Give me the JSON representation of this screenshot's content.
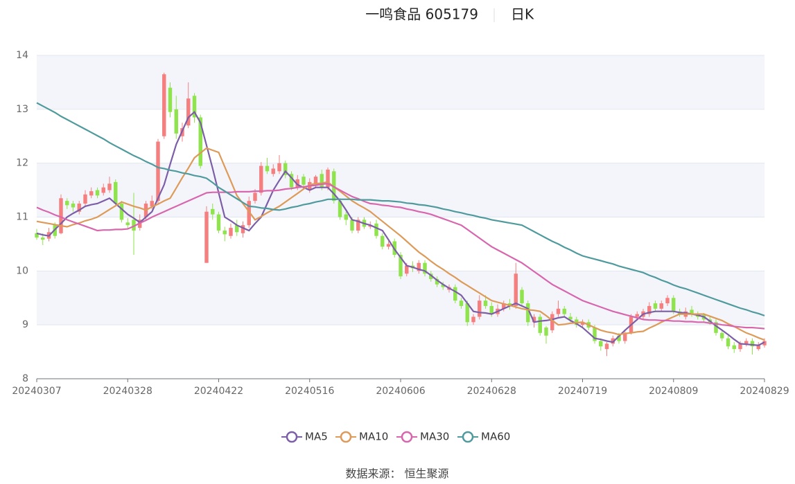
{
  "chart_data": {
    "type": "candlestick",
    "title": "一鸣食品 605179",
    "period": "日K",
    "source": "数据来源： 恒生聚源",
    "categories": [
      "20240307",
      null,
      null,
      null,
      null,
      null,
      null,
      null,
      null,
      null,
      null,
      null,
      null,
      null,
      null,
      "20240328",
      null,
      null,
      null,
      null,
      null,
      null,
      null,
      null,
      null,
      null,
      null,
      null,
      null,
      null,
      "20240422",
      null,
      null,
      null,
      null,
      null,
      null,
      null,
      null,
      null,
      null,
      null,
      null,
      null,
      null,
      "20240516",
      null,
      null,
      null,
      null,
      null,
      null,
      null,
      null,
      null,
      null,
      null,
      null,
      null,
      null,
      "20240606",
      null,
      null,
      null,
      null,
      null,
      null,
      null,
      null,
      null,
      null,
      null,
      null,
      null,
      null,
      "20240628",
      null,
      null,
      null,
      null,
      null,
      null,
      null,
      null,
      null,
      null,
      null,
      null,
      null,
      null,
      "20240719",
      null,
      null,
      null,
      null,
      null,
      null,
      null,
      null,
      null,
      null,
      null,
      null,
      null,
      null,
      "20240809",
      null,
      null,
      null,
      null,
      null,
      null,
      null,
      null,
      null,
      null,
      null,
      null,
      null,
      null,
      "20240829"
    ],
    "open": [
      10.7,
      10.62,
      10.6,
      10.85,
      10.7,
      11.3,
      11.25,
      11.1,
      11.25,
      11.4,
      11.5,
      11.45,
      11.5,
      11.65,
      11.25,
      10.9,
      10.95,
      10.8,
      11.0,
      11.2,
      11.3,
      12.5,
      13.4,
      13.0,
      12.5,
      12.7,
      13.25,
      12.85,
      10.15,
      11.15,
      11.05,
      10.75,
      10.65,
      10.85,
      10.7,
      10.85,
      11.3,
      11.45,
      11.95,
      11.8,
      11.85,
      12.0,
      11.8,
      11.55,
      11.75,
      11.5,
      11.6,
      11.8,
      11.55,
      11.85,
      11.3,
      11.05,
      10.95,
      10.75,
      10.95,
      10.82,
      10.88,
      10.65,
      10.45,
      10.55,
      10.3,
      9.95,
      10.1,
      10.0,
      10.15,
      9.95,
      9.85,
      9.75,
      9.65,
      9.7,
      9.45,
      9.4,
      9.05,
      9.15,
      9.45,
      9.35,
      9.2,
      9.3,
      9.4,
      9.35,
      9.65,
      9.4,
      9.05,
      9.15,
      8.95,
      8.9,
      9.2,
      9.3,
      9.15,
      9.1,
      9.0,
      9.05,
      8.95,
      8.7,
      8.55,
      8.65,
      8.8,
      8.7,
      8.85,
      9.15,
      9.15,
      9.2,
      9.4,
      9.3,
      9.4,
      9.5,
      9.25,
      9.15,
      9.28,
      9.2,
      9.18,
      9.1,
      9.05,
      8.85,
      8.75,
      8.62,
      8.55,
      8.65,
      8.7,
      8.55,
      8.62
    ],
    "close": [
      10.62,
      10.58,
      10.72,
      10.65,
      11.35,
      11.22,
      11.18,
      11.25,
      11.42,
      11.48,
      11.4,
      11.55,
      11.62,
      11.25,
      10.95,
      10.85,
      10.75,
      10.95,
      11.25,
      11.3,
      12.4,
      13.65,
      12.95,
      12.55,
      12.65,
      13.2,
      12.85,
      11.95,
      11.1,
      11.05,
      10.75,
      10.68,
      10.8,
      10.72,
      10.85,
      11.3,
      11.45,
      11.95,
      11.85,
      11.9,
      12.0,
      11.78,
      11.55,
      11.7,
      11.6,
      11.65,
      11.75,
      11.55,
      11.88,
      11.3,
      11.0,
      10.95,
      10.75,
      10.95,
      10.82,
      10.85,
      10.65,
      10.45,
      10.5,
      10.3,
      9.9,
      10.1,
      10.05,
      10.15,
      9.95,
      9.85,
      9.75,
      9.7,
      9.7,
      9.45,
      9.35,
      9.05,
      9.15,
      9.45,
      9.35,
      9.2,
      9.3,
      9.4,
      9.35,
      9.95,
      9.4,
      9.05,
      9.15,
      8.85,
      8.8,
      9.2,
      9.3,
      9.2,
      9.1,
      9.0,
      9.05,
      8.95,
      8.7,
      8.6,
      8.65,
      8.75,
      8.7,
      8.85,
      9.15,
      9.2,
      9.25,
      9.35,
      9.3,
      9.4,
      9.5,
      9.25,
      9.2,
      9.25,
      9.2,
      9.15,
      9.1,
      9.05,
      8.85,
      8.75,
      8.6,
      8.55,
      8.65,
      8.7,
      8.6,
      8.62,
      8.7
    ],
    "high": [
      10.78,
      10.7,
      10.8,
      10.9,
      11.42,
      11.35,
      11.3,
      11.3,
      11.5,
      11.55,
      11.55,
      11.62,
      11.75,
      11.7,
      11.3,
      10.98,
      11.45,
      11.05,
      11.3,
      11.4,
      12.45,
      13.68,
      13.5,
      13.25,
      12.75,
      13.5,
      13.3,
      12.9,
      11.2,
      11.25,
      11.1,
      10.82,
      10.88,
      10.95,
      10.92,
      11.38,
      11.52,
      12.02,
      12.1,
      11.98,
      12.15,
      12.05,
      11.85,
      11.78,
      11.8,
      11.72,
      11.78,
      11.88,
      11.92,
      11.9,
      11.35,
      11.1,
      11.0,
      11.0,
      11.0,
      10.92,
      10.95,
      10.7,
      10.55,
      10.6,
      10.35,
      10.15,
      10.18,
      10.2,
      10.2,
      10.0,
      9.9,
      9.8,
      9.75,
      9.75,
      9.5,
      9.45,
      9.2,
      9.55,
      9.55,
      9.42,
      9.38,
      9.45,
      9.48,
      10.15,
      9.7,
      9.45,
      9.2,
      9.2,
      8.98,
      9.25,
      9.45,
      9.35,
      9.22,
      9.15,
      9.1,
      9.1,
      9.0,
      8.75,
      8.68,
      8.8,
      8.85,
      8.9,
      9.2,
      9.25,
      9.3,
      9.42,
      9.45,
      9.45,
      9.55,
      9.55,
      9.3,
      9.32,
      9.35,
      9.25,
      9.22,
      9.15,
      9.1,
      8.9,
      8.8,
      8.68,
      8.7,
      8.75,
      8.75,
      8.68,
      8.75
    ],
    "low": [
      10.58,
      10.48,
      10.55,
      10.6,
      10.68,
      11.15,
      11.1,
      11.05,
      11.2,
      11.35,
      11.35,
      11.4,
      11.45,
      11.2,
      10.9,
      10.78,
      10.3,
      10.75,
      10.95,
      11.15,
      11.25,
      12.45,
      12.85,
      12.45,
      12.4,
      12.65,
      12.75,
      11.9,
      10.15,
      10.95,
      10.7,
      10.55,
      10.6,
      10.65,
      10.62,
      10.8,
      11.25,
      11.4,
      11.8,
      11.75,
      11.8,
      11.72,
      11.5,
      11.5,
      11.55,
      11.45,
      11.55,
      11.5,
      11.5,
      11.25,
      10.95,
      10.85,
      10.7,
      10.7,
      10.78,
      10.78,
      10.6,
      10.4,
      10.4,
      10.25,
      9.85,
      9.9,
      9.98,
      9.95,
      9.9,
      9.8,
      9.7,
      9.65,
      9.6,
      9.4,
      9.3,
      8.98,
      9.0,
      9.1,
      9.3,
      9.15,
      9.15,
      9.25,
      9.28,
      9.3,
      9.35,
      8.98,
      8.95,
      8.8,
      8.65,
      8.85,
      9.15,
      9.15,
      9.05,
      8.95,
      8.95,
      8.9,
      8.65,
      8.52,
      8.42,
      8.6,
      8.65,
      8.65,
      8.82,
      9.08,
      9.1,
      9.15,
      9.25,
      9.25,
      9.35,
      9.2,
      9.15,
      9.1,
      9.15,
      9.1,
      9.05,
      9.0,
      8.8,
      8.7,
      8.55,
      8.48,
      8.5,
      8.6,
      8.45,
      8.52,
      8.58
    ],
    "up_color": "#f57f7f",
    "down_color": "#8fe44d",
    "series": [
      {
        "name": "MA5",
        "color": "#7b5ea7",
        "values": [
          10.7,
          10.67,
          10.65,
          10.77,
          10.88,
          11.0,
          11.07,
          11.13,
          11.2,
          11.23,
          11.25,
          11.3,
          11.35,
          11.25,
          11.15,
          11.05,
          10.98,
          10.9,
          11.0,
          11.1,
          11.35,
          11.6,
          11.98,
          12.35,
          12.6,
          12.85,
          12.95,
          12.75,
          12.33,
          11.9,
          11.45,
          11.0,
          10.93,
          10.85,
          10.8,
          10.75,
          10.88,
          11.0,
          11.25,
          11.5,
          11.68,
          11.85,
          11.73,
          11.6,
          11.55,
          11.5,
          11.55,
          11.55,
          11.55,
          11.43,
          11.3,
          11.13,
          10.95,
          10.92,
          10.88,
          10.85,
          10.8,
          10.75,
          10.58,
          10.4,
          10.25,
          10.1,
          10.07,
          10.03,
          10.0,
          9.92,
          9.83,
          9.75,
          9.68,
          9.62,
          9.55,
          9.4,
          9.25,
          9.23,
          9.22,
          9.2,
          9.25,
          9.3,
          9.35,
          9.4,
          9.35,
          9.3,
          9.05,
          9.07,
          9.08,
          9.1,
          9.13,
          9.15,
          9.08,
          9.02,
          8.95,
          8.85,
          8.75,
          8.73,
          8.7,
          8.68,
          8.79,
          8.9,
          9.0,
          9.1,
          9.2,
          9.23,
          9.25,
          9.25,
          9.25,
          9.25,
          9.23,
          9.22,
          9.2,
          9.18,
          9.15,
          9.07,
          8.98,
          8.9,
          8.82,
          8.73,
          8.65,
          8.64,
          8.63,
          8.62,
          8.68
        ]
      },
      {
        "name": "MA10",
        "color": "#dd9a58",
        "values": [
          10.92,
          10.9,
          10.88,
          10.86,
          10.84,
          10.82,
          10.86,
          10.89,
          10.93,
          10.96,
          11.0,
          11.07,
          11.14,
          11.21,
          11.28,
          11.24,
          11.2,
          11.17,
          11.13,
          11.19,
          11.24,
          11.3,
          11.35,
          11.54,
          11.73,
          11.91,
          12.1,
          12.19,
          12.28,
          12.24,
          12.2,
          11.93,
          11.67,
          11.4,
          11.25,
          11.1,
          10.95,
          11.01,
          11.08,
          11.14,
          11.2,
          11.28,
          11.36,
          11.44,
          11.52,
          11.6,
          11.62,
          11.63,
          11.65,
          11.56,
          11.48,
          11.39,
          11.3,
          11.23,
          11.17,
          11.1,
          11.01,
          10.92,
          10.83,
          10.74,
          10.65,
          10.55,
          10.45,
          10.35,
          10.27,
          10.18,
          10.1,
          10.03,
          9.95,
          9.88,
          9.8,
          9.73,
          9.66,
          9.59,
          9.52,
          9.45,
          9.42,
          9.39,
          9.36,
          9.33,
          9.3,
          9.28,
          9.27,
          9.25,
          9.17,
          9.08,
          9.0,
          9.01,
          9.03,
          9.04,
          9.05,
          9.0,
          8.95,
          8.9,
          8.87,
          8.85,
          8.82,
          8.84,
          8.85,
          8.87,
          8.88,
          8.94,
          8.99,
          9.05,
          9.1,
          9.15,
          9.2,
          9.2,
          9.2,
          9.2,
          9.2,
          9.16,
          9.12,
          9.08,
          9.02,
          8.97,
          8.91,
          8.85,
          8.81,
          8.76,
          8.72
        ]
      },
      {
        "name": "MA30",
        "color": "#d766ad",
        "values": [
          11.18,
          11.13,
          11.09,
          11.04,
          11.0,
          10.95,
          10.91,
          10.87,
          10.83,
          10.79,
          10.75,
          10.76,
          10.76,
          10.77,
          10.77,
          10.78,
          10.83,
          10.89,
          10.94,
          11.0,
          11.05,
          11.1,
          11.15,
          11.2,
          11.25,
          11.3,
          11.35,
          11.4,
          11.45,
          11.46,
          11.46,
          11.46,
          11.46,
          11.47,
          11.47,
          11.47,
          11.48,
          11.48,
          11.49,
          11.49,
          11.5,
          11.52,
          11.53,
          11.55,
          11.56,
          11.58,
          11.59,
          11.61,
          11.62,
          11.56,
          11.5,
          11.44,
          11.38,
          11.34,
          11.29,
          11.25,
          11.24,
          11.22,
          11.21,
          11.19,
          11.18,
          11.15,
          11.13,
          11.1,
          11.08,
          11.05,
          11.01,
          10.97,
          10.93,
          10.89,
          10.85,
          10.77,
          10.69,
          10.61,
          10.53,
          10.45,
          10.39,
          10.33,
          10.27,
          10.21,
          10.15,
          10.07,
          9.99,
          9.91,
          9.83,
          9.75,
          9.69,
          9.63,
          9.57,
          9.51,
          9.45,
          9.41,
          9.37,
          9.33,
          9.29,
          9.25,
          9.22,
          9.19,
          9.16,
          9.13,
          9.1,
          9.09,
          9.09,
          9.08,
          9.08,
          9.07,
          9.07,
          9.06,
          9.06,
          9.05,
          9.05,
          9.03,
          9.02,
          9.0,
          8.99,
          8.97,
          8.96,
          8.95,
          8.95,
          8.94,
          8.93
        ]
      },
      {
        "name": "MA60",
        "color": "#4f9a9d",
        "values": [
          13.12,
          13.06,
          13.0,
          12.94,
          12.87,
          12.81,
          12.75,
          12.69,
          12.63,
          12.57,
          12.51,
          12.45,
          12.38,
          12.32,
          12.26,
          12.2,
          12.14,
          12.09,
          12.03,
          11.98,
          11.92,
          11.9,
          11.87,
          11.85,
          11.82,
          11.8,
          11.77,
          11.75,
          11.72,
          11.64,
          11.55,
          11.48,
          11.41,
          11.34,
          11.27,
          11.2,
          11.19,
          11.17,
          11.16,
          11.14,
          11.13,
          11.15,
          11.18,
          11.2,
          11.23,
          11.25,
          11.28,
          11.3,
          11.33,
          11.33,
          11.33,
          11.33,
          11.33,
          11.32,
          11.32,
          11.32,
          11.31,
          11.3,
          11.3,
          11.29,
          11.28,
          11.26,
          11.25,
          11.23,
          11.22,
          11.2,
          11.18,
          11.15,
          11.13,
          11.1,
          11.08,
          11.05,
          11.03,
          11.0,
          10.98,
          10.95,
          10.93,
          10.91,
          10.89,
          10.87,
          10.85,
          10.79,
          10.73,
          10.67,
          10.61,
          10.55,
          10.5,
          10.44,
          10.39,
          10.33,
          10.28,
          10.25,
          10.22,
          10.19,
          10.16,
          10.13,
          10.09,
          10.06,
          10.03,
          10.0,
          9.97,
          9.92,
          9.88,
          9.83,
          9.79,
          9.74,
          9.7,
          9.67,
          9.63,
          9.59,
          9.55,
          9.51,
          9.47,
          9.43,
          9.39,
          9.35,
          9.31,
          9.28,
          9.24,
          9.21,
          9.17
        ]
      }
    ],
    "ylim": [
      8,
      14
    ],
    "yticks": [
      8,
      9,
      10,
      11,
      12,
      13,
      14
    ],
    "grid": true,
    "legend": "bottom"
  }
}
